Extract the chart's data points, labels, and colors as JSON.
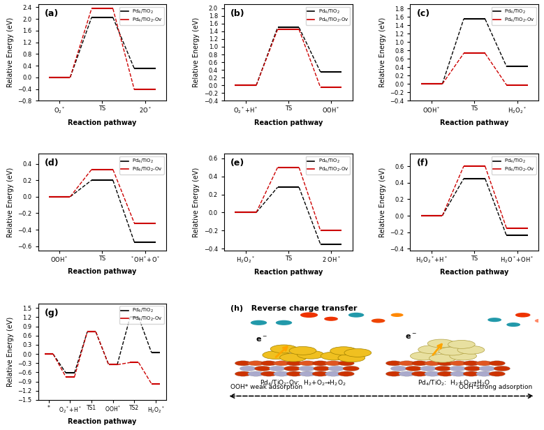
{
  "panels": {
    "a": {
      "label": "(a)",
      "xlabel_ticks": [
        "O$_2$$^*$",
        "TS",
        "2O$^*$"
      ],
      "ylim": [
        -0.8,
        2.5
      ],
      "yticks": [
        -0.8,
        -0.4,
        0.0,
        0.4,
        0.8,
        1.2,
        1.6,
        2.0,
        2.4
      ],
      "black": [
        0.0,
        2.05,
        0.3
      ],
      "red": [
        0.0,
        2.35,
        -0.42
      ]
    },
    "b": {
      "label": "(b)",
      "xlabel_ticks": [
        "O$_2$$^*$+H$^*$",
        "TS",
        "OOH$^*$"
      ],
      "ylim": [
        -0.4,
        2.1
      ],
      "yticks": [
        -0.4,
        -0.2,
        0.0,
        0.2,
        0.4,
        0.6,
        0.8,
        1.0,
        1.2,
        1.4,
        1.6,
        1.8,
        2.0
      ],
      "black": [
        0.0,
        1.5,
        0.35
      ],
      "red": [
        0.0,
        1.45,
        -0.05
      ]
    },
    "c": {
      "label": "(c)",
      "xlabel_ticks": [
        "OOH$^*$",
        "TS",
        "H$_2$O$_2$$^*$"
      ],
      "ylim": [
        -0.4,
        1.9
      ],
      "yticks": [
        -0.4,
        -0.2,
        0.0,
        0.2,
        0.4,
        0.6,
        0.8,
        1.0,
        1.2,
        1.4,
        1.6,
        1.8
      ],
      "black": [
        0.0,
        1.55,
        0.42
      ],
      "red": [
        0.0,
        0.73,
        -0.02
      ]
    },
    "d": {
      "label": "(d)",
      "xlabel_ticks": [
        "OOH$^*$",
        "TS",
        "$^*$OH$^*$+O$^*$"
      ],
      "ylim": [
        -0.65,
        0.52
      ],
      "yticks": [
        -0.6,
        -0.4,
        -0.2,
        0.0,
        0.2,
        0.4
      ],
      "black": [
        0.0,
        0.2,
        -0.55
      ],
      "red": [
        0.0,
        0.33,
        -0.32
      ]
    },
    "e": {
      "label": "(e)",
      "xlabel_ticks": [
        "H$_2$O$_2$$^*$",
        "TS",
        "2 OH$^*$"
      ],
      "ylim": [
        -0.42,
        0.65
      ],
      "yticks": [
        -0.4,
        -0.2,
        0.0,
        0.2,
        0.4,
        0.6
      ],
      "black": [
        0.0,
        0.28,
        -0.35
      ],
      "red": [
        0.0,
        0.5,
        -0.2
      ]
    },
    "f": {
      "label": "(f)",
      "xlabel_ticks": [
        "H$_2$O$_2$$^*$+H$^*$",
        "TS",
        "H$_2$O$^*$+OH$^*$"
      ],
      "ylim": [
        -0.42,
        0.75
      ],
      "yticks": [
        -0.4,
        -0.2,
        0.0,
        0.2,
        0.4,
        0.6
      ],
      "black": [
        0.0,
        0.45,
        -0.24
      ],
      "red": [
        0.0,
        0.6,
        -0.15
      ]
    },
    "g": {
      "label": "(g)",
      "xlabel_ticks": [
        "*",
        "O$_2$$^*$+H$^*$",
        "TS1",
        "OOH$^*$",
        "TS2",
        "H$_2$O$_2$$^*$"
      ],
      "ylim": [
        -1.5,
        1.65
      ],
      "yticks": [
        -1.5,
        -1.2,
        -0.9,
        -0.6,
        -0.3,
        0.0,
        0.3,
        0.6,
        0.9,
        1.2,
        1.5
      ],
      "black": [
        0.0,
        -0.62,
        0.72,
        -0.35,
        1.2,
        0.05
      ],
      "red": [
        0.0,
        -0.75,
        0.72,
        -0.35,
        -0.28,
        -0.97
      ]
    }
  },
  "legend_labels": [
    "Pd$_4$/TiO$_2$",
    "Pd$_4$/TiO$_2$-Ov"
  ],
  "ylabel": "Relative Energy (eV)",
  "xlabel": "Reaction pathway",
  "black_color": "#000000",
  "red_color": "#cc0000",
  "h_title": "(h)   Reverse charge transfer",
  "h_label_left": "Pd$_4$/TiO$_2$-Ov:  H$_2$+O$_2$→H$_2$O$_2$",
  "h_label_right": "Pd$_4$/TiO$_2$:  H$_2$+O$_2$→H$_2$O",
  "h_bottom_left": "OOH* weak adsorption",
  "h_bottom_right": "OOH*strong adsorption"
}
